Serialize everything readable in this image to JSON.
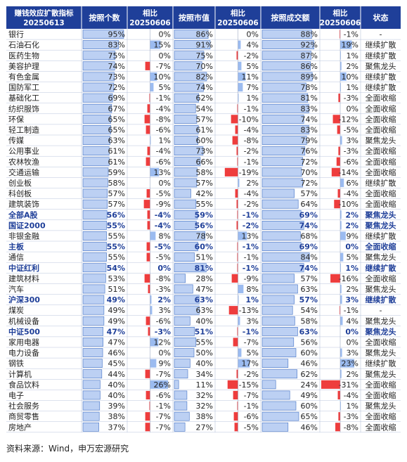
{
  "chart_data": {
    "type": "table",
    "header": {
      "title_line1": "赚钱效应扩散指标",
      "title_line2": "20250613",
      "col_count": "按照个数",
      "col_cmp_a1": "相比",
      "col_cmp_a2": "20250606",
      "col_mktcap": "按照市值",
      "col_cmp_b1": "相比",
      "col_cmp_b2": "20250606",
      "col_turnover": "按照成交额",
      "col_cmp_c1": "相比",
      "col_cmp_c2": "20250606",
      "col_status": "状态"
    },
    "rows": [
      {
        "name": "银行",
        "count": "95%",
        "count_v": 95,
        "d1": "0%",
        "d1_v": 0,
        "mcap": "86%",
        "mcap_v": 86,
        "d2": "0%",
        "d2_v": 0,
        "turn": "88%",
        "turn_v": 88,
        "d3": "-1%",
        "d3_v": -1,
        "status": "-",
        "bold": false
      },
      {
        "name": "石油石化",
        "count": "83%",
        "count_v": 83,
        "d1": "15%",
        "d1_v": 15,
        "mcap": "91%",
        "mcap_v": 91,
        "d2": "4%",
        "d2_v": 4,
        "turn": "92%",
        "turn_v": 92,
        "d3": "19%",
        "d3_v": 19,
        "status": "继续扩散",
        "bold": false
      },
      {
        "name": "医药生物",
        "count": "75%",
        "count_v": 75,
        "d1": "0%",
        "d1_v": 0,
        "mcap": "75%",
        "mcap_v": 75,
        "d2": "-2%",
        "d2_v": -2,
        "turn": "87%",
        "turn_v": 87,
        "d3": "1%",
        "d3_v": 1,
        "status": "继续扩散",
        "bold": false
      },
      {
        "name": "美容护理",
        "count": "74%",
        "count_v": 74,
        "d1": "-7%",
        "d1_v": -7,
        "mcap": "70%",
        "mcap_v": 70,
        "d2": "5%",
        "d2_v": 5,
        "turn": "86%",
        "turn_v": 86,
        "d3": "2%",
        "d3_v": 2,
        "status": "聚焦龙头",
        "bold": false
      },
      {
        "name": "有色金属",
        "count": "73%",
        "count_v": 73,
        "d1": "10%",
        "d1_v": 10,
        "mcap": "82%",
        "mcap_v": 82,
        "d2": "11%",
        "d2_v": 11,
        "turn": "89%",
        "turn_v": 89,
        "d3": "10%",
        "d3_v": 10,
        "status": "继续扩散",
        "bold": false
      },
      {
        "name": "国防军工",
        "count": "72%",
        "count_v": 72,
        "d1": "5%",
        "d1_v": 5,
        "mcap": "74%",
        "mcap_v": 74,
        "d2": "7%",
        "d2_v": 7,
        "turn": "78%",
        "turn_v": 78,
        "d3": "1%",
        "d3_v": 1,
        "status": "继续扩散",
        "bold": false
      },
      {
        "name": "基础化工",
        "count": "69%",
        "count_v": 69,
        "d1": "-1%",
        "d1_v": -1,
        "mcap": "62%",
        "mcap_v": 62,
        "d2": "1%",
        "d2_v": 1,
        "turn": "81%",
        "turn_v": 81,
        "d3": "-3%",
        "d3_v": -3,
        "status": "全面收缩",
        "bold": false
      },
      {
        "name": "纺织服饰",
        "count": "67%",
        "count_v": 67,
        "d1": "-4%",
        "d1_v": -4,
        "mcap": "54%",
        "mcap_v": 54,
        "d2": "-1%",
        "d2_v": -1,
        "turn": "83%",
        "turn_v": 83,
        "d3": "0%",
        "d3_v": 0,
        "status": "全面收缩",
        "bold": false
      },
      {
        "name": "环保",
        "count": "65%",
        "count_v": 65,
        "d1": "-8%",
        "d1_v": -8,
        "mcap": "57%",
        "mcap_v": 57,
        "d2": "-10%",
        "d2_v": -10,
        "turn": "74%",
        "turn_v": 74,
        "d3": "-12%",
        "d3_v": -12,
        "status": "全面收缩",
        "bold": false
      },
      {
        "name": "轻工制造",
        "count": "65%",
        "count_v": 65,
        "d1": "-6%",
        "d1_v": -6,
        "mcap": "61%",
        "mcap_v": 61,
        "d2": "-4%",
        "d2_v": -4,
        "turn": "83%",
        "turn_v": 83,
        "d3": "-5%",
        "d3_v": -5,
        "status": "全面收缩",
        "bold": false
      },
      {
        "name": "传媒",
        "count": "63%",
        "count_v": 63,
        "d1": "1%",
        "d1_v": 1,
        "mcap": "60%",
        "mcap_v": 60,
        "d2": "-8%",
        "d2_v": -8,
        "turn": "79%",
        "turn_v": 79,
        "d3": "3%",
        "d3_v": 3,
        "status": "聚焦龙头",
        "bold": false
      },
      {
        "name": "公用事业",
        "count": "61%",
        "count_v": 61,
        "d1": "-4%",
        "d1_v": -4,
        "mcap": "73%",
        "mcap_v": 73,
        "d2": "-2%",
        "d2_v": -2,
        "turn": "76%",
        "turn_v": 76,
        "d3": "-3%",
        "d3_v": -3,
        "status": "全面收缩",
        "bold": false
      },
      {
        "name": "农林牧渔",
        "count": "61%",
        "count_v": 61,
        "d1": "-6%",
        "d1_v": -6,
        "mcap": "66%",
        "mcap_v": 66,
        "d2": "-1%",
        "d2_v": -1,
        "turn": "72%",
        "turn_v": 72,
        "d3": "-6%",
        "d3_v": -6,
        "status": "全面收缩",
        "bold": false
      },
      {
        "name": "交通运输",
        "count": "59%",
        "count_v": 59,
        "d1": "13%",
        "d1_v": 13,
        "mcap": "58%",
        "mcap_v": 58,
        "d2": "-19%",
        "d2_v": -19,
        "turn": "70%",
        "turn_v": 70,
        "d3": "-14%",
        "d3_v": -14,
        "status": "全面收缩",
        "bold": false
      },
      {
        "name": "创业板",
        "count": "58%",
        "count_v": 58,
        "d1": "0%",
        "d1_v": 0,
        "mcap": "57%",
        "mcap_v": 57,
        "d2": "2%",
        "d2_v": 2,
        "turn": "72%",
        "turn_v": 72,
        "d3": "6%",
        "d3_v": 6,
        "status": "继续扩散",
        "bold": false
      },
      {
        "name": "科创板",
        "count": "57%",
        "count_v": 57,
        "d1": "-5%",
        "d1_v": -5,
        "mcap": "42%",
        "mcap_v": 42,
        "d2": "-4%",
        "d2_v": -4,
        "turn": "57%",
        "turn_v": 57,
        "d3": "-4%",
        "d3_v": -4,
        "status": "全面收缩",
        "bold": false
      },
      {
        "name": "建筑装饰",
        "count": "57%",
        "count_v": 57,
        "d1": "-9%",
        "d1_v": -9,
        "mcap": "55%",
        "mcap_v": 55,
        "d2": "-2%",
        "d2_v": -2,
        "turn": "64%",
        "turn_v": 64,
        "d3": "-10%",
        "d3_v": -10,
        "status": "全面收缩",
        "bold": false
      },
      {
        "name": "全部A股",
        "count": "56%",
        "count_v": 56,
        "d1": "-4%",
        "d1_v": -4,
        "mcap": "59%",
        "mcap_v": 59,
        "d2": "-1%",
        "d2_v": -1,
        "turn": "69%",
        "turn_v": 69,
        "d3": "2%",
        "d3_v": 2,
        "status": "聚焦龙头",
        "bold": true
      },
      {
        "name": "国证2000",
        "count": "55%",
        "count_v": 55,
        "d1": "-4%",
        "d1_v": -4,
        "mcap": "56%",
        "mcap_v": 56,
        "d2": "-2%",
        "d2_v": -2,
        "turn": "74%",
        "turn_v": 74,
        "d3": "2%",
        "d3_v": 2,
        "status": "聚焦龙头",
        "bold": true
      },
      {
        "name": "非银金融",
        "count": "55%",
        "count_v": 55,
        "d1": "8%",
        "d1_v": 8,
        "mcap": "78%",
        "mcap_v": 78,
        "d2": "13%",
        "d2_v": 13,
        "turn": "68%",
        "turn_v": 68,
        "d3": "9%",
        "d3_v": 9,
        "status": "继续扩散",
        "bold": false
      },
      {
        "name": "主板",
        "count": "55%",
        "count_v": 55,
        "d1": "-5%",
        "d1_v": -5,
        "mcap": "60%",
        "mcap_v": 60,
        "d2": "-1%",
        "d2_v": -1,
        "turn": "69%",
        "turn_v": 69,
        "d3": "0%",
        "d3_v": 0,
        "status": "全面收缩",
        "bold": true
      },
      {
        "name": "通信",
        "count": "55%",
        "count_v": 55,
        "d1": "-5%",
        "d1_v": -5,
        "mcap": "51%",
        "mcap_v": 51,
        "d2": "-1%",
        "d2_v": -1,
        "turn": "84%",
        "turn_v": 84,
        "d3": "5%",
        "d3_v": 5,
        "status": "聚焦龙头",
        "bold": false
      },
      {
        "name": "中证红利",
        "count": "54%",
        "count_v": 54,
        "d1": "0%",
        "d1_v": 0,
        "mcap": "81%",
        "mcap_v": 81,
        "d2": "-1%",
        "d2_v": -1,
        "turn": "74%",
        "turn_v": 74,
        "d3": "1%",
        "d3_v": 1,
        "status": "继续扩散",
        "bold": true
      },
      {
        "name": "建筑材料",
        "count": "53%",
        "count_v": 53,
        "d1": "-8%",
        "d1_v": -8,
        "mcap": "28%",
        "mcap_v": 28,
        "d2": "-9%",
        "d2_v": -9,
        "turn": "57%",
        "turn_v": 57,
        "d3": "-16%",
        "d3_v": -16,
        "status": "全面收缩",
        "bold": false
      },
      {
        "name": "汽车",
        "count": "51%",
        "count_v": 51,
        "d1": "-3%",
        "d1_v": -3,
        "mcap": "47%",
        "mcap_v": 47,
        "d2": "8%",
        "d2_v": 8,
        "turn": "63%",
        "turn_v": 63,
        "d3": "2%",
        "d3_v": 2,
        "status": "聚焦龙头",
        "bold": false
      },
      {
        "name": "沪深300",
        "count": "49%",
        "count_v": 49,
        "d1": "2%",
        "d1_v": 2,
        "mcap": "63%",
        "mcap_v": 63,
        "d2": "1%",
        "d2_v": 1,
        "turn": "57%",
        "turn_v": 57,
        "d3": "3%",
        "d3_v": 3,
        "status": "继续扩散",
        "bold": true
      },
      {
        "name": "煤炭",
        "count": "49%",
        "count_v": 49,
        "d1": "3%",
        "d1_v": 3,
        "mcap": "63%",
        "mcap_v": 63,
        "d2": "-13%",
        "d2_v": -13,
        "turn": "54%",
        "turn_v": 54,
        "d3": "-1%",
        "d3_v": -1,
        "status": "-",
        "bold": false
      },
      {
        "name": "机械设备",
        "count": "49%",
        "count_v": 49,
        "d1": "-6%",
        "d1_v": -6,
        "mcap": "40%",
        "mcap_v": 40,
        "d2": "3%",
        "d2_v": 3,
        "turn": "58%",
        "turn_v": 58,
        "d3": "4%",
        "d3_v": 4,
        "status": "聚焦龙头",
        "bold": false
      },
      {
        "name": "中证500",
        "count": "47%",
        "count_v": 47,
        "d1": "-3%",
        "d1_v": -3,
        "mcap": "51%",
        "mcap_v": 51,
        "d2": "-1%",
        "d2_v": -1,
        "turn": "63%",
        "turn_v": 63,
        "d3": "0%",
        "d3_v": 0,
        "status": "聚焦龙头",
        "bold": true
      },
      {
        "name": "家用电器",
        "count": "47%",
        "count_v": 47,
        "d1": "12%",
        "d1_v": 12,
        "mcap": "55%",
        "mcap_v": 55,
        "d2": "-7%",
        "d2_v": -7,
        "turn": "56%",
        "turn_v": 56,
        "d3": "0%",
        "d3_v": 0,
        "status": "全面收缩",
        "bold": false
      },
      {
        "name": "电力设备",
        "count": "46%",
        "count_v": 46,
        "d1": "0%",
        "d1_v": 0,
        "mcap": "50%",
        "mcap_v": 50,
        "d2": "5%",
        "d2_v": 5,
        "turn": "60%",
        "turn_v": 60,
        "d3": "3%",
        "d3_v": 3,
        "status": "聚焦龙头",
        "bold": false
      },
      {
        "name": "钢铁",
        "count": "45%",
        "count_v": 45,
        "d1": "9%",
        "d1_v": 9,
        "mcap": "40%",
        "mcap_v": 40,
        "d2": "17%",
        "d2_v": 17,
        "turn": "46%",
        "turn_v": 46,
        "d3": "23%",
        "d3_v": 23,
        "status": "继续扩散",
        "bold": false
      },
      {
        "name": "计算机",
        "count": "44%",
        "count_v": 44,
        "d1": "-7%",
        "d1_v": -7,
        "mcap": "34%",
        "mcap_v": 34,
        "d2": "-2%",
        "d2_v": -2,
        "turn": "62%",
        "turn_v": 62,
        "d3": "2%",
        "d3_v": 2,
        "status": "聚焦龙头",
        "bold": false
      },
      {
        "name": "食品饮料",
        "count": "40%",
        "count_v": 40,
        "d1": "26%",
        "d1_v": 26,
        "mcap": "11%",
        "mcap_v": 11,
        "d2": "-15%",
        "d2_v": -15,
        "turn": "24%",
        "turn_v": 24,
        "d3": "-31%",
        "d3_v": -31,
        "status": "全面收缩",
        "bold": false
      },
      {
        "name": "电子",
        "count": "40%",
        "count_v": 40,
        "d1": "-6%",
        "d1_v": -6,
        "mcap": "32%",
        "mcap_v": 32,
        "d2": "-7%",
        "d2_v": -7,
        "turn": "49%",
        "turn_v": 49,
        "d3": "-4%",
        "d3_v": -4,
        "status": "全面收缩",
        "bold": false
      },
      {
        "name": "社会服务",
        "count": "39%",
        "count_v": 39,
        "d1": "-1%",
        "d1_v": -1,
        "mcap": "32%",
        "mcap_v": 32,
        "d2": "-1%",
        "d2_v": -1,
        "turn": "60%",
        "turn_v": 60,
        "d3": "1%",
        "d3_v": 1,
        "status": "聚焦龙头",
        "bold": false
      },
      {
        "name": "商贸零售",
        "count": "38%",
        "count_v": 38,
        "d1": "-7%",
        "d1_v": -7,
        "mcap": "38%",
        "mcap_v": 38,
        "d2": "-6%",
        "d2_v": -6,
        "turn": "65%",
        "turn_v": 65,
        "d3": "-3%",
        "d3_v": -3,
        "status": "全面收缩",
        "bold": false
      },
      {
        "name": "房地产",
        "count": "37%",
        "count_v": 37,
        "d1": "-7%",
        "d1_v": -7,
        "mcap": "27%",
        "mcap_v": 27,
        "d2": "-5%",
        "d2_v": -5,
        "turn": "46%",
        "turn_v": 46,
        "d3": "-8%",
        "d3_v": -8,
        "status": "全面收缩",
        "bold": false
      }
    ]
  },
  "source_note": "资料来源：Wind，申万宏源研究",
  "colors": {
    "header_bg": "#1f3f99",
    "header_text": "#ffffff",
    "value_bar": "#bcd0f3",
    "value_bar_edge": "#3f6fc4",
    "pos_bar": "#9bbbf0",
    "neg_bar": "#ee3d3d",
    "bold_text": "#1f3f99",
    "grid": "#b8c4dc"
  }
}
